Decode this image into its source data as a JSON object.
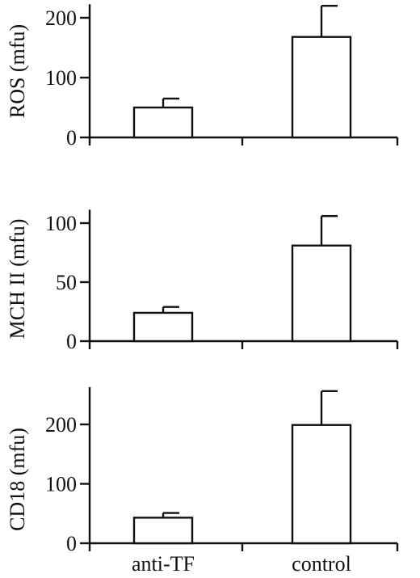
{
  "chart_data": [
    {
      "type": "bar",
      "ylabel": "ROS (mfu)",
      "categories": [
        "anti-TF",
        "control"
      ],
      "values": [
        50,
        168
      ],
      "errors": [
        15,
        52
      ],
      "ylim": [
        0,
        220
      ],
      "yticks": [
        0,
        100,
        200
      ]
    },
    {
      "type": "bar",
      "ylabel": "MCH II (mfu)",
      "categories": [
        "anti-TF",
        "control"
      ],
      "values": [
        24,
        81
      ],
      "errors": [
        5,
        25
      ],
      "ylim": [
        0,
        110
      ],
      "yticks": [
        0,
        50,
        100
      ]
    },
    {
      "type": "bar",
      "ylabel": "CD18 (mfu)",
      "categories": [
        "anti-TF",
        "control"
      ],
      "values": [
        43,
        199
      ],
      "errors": [
        8,
        57
      ],
      "ylim": [
        0,
        260
      ],
      "yticks": [
        0,
        100,
        200
      ]
    }
  ],
  "x_labels": [
    "anti-TF",
    "control"
  ]
}
